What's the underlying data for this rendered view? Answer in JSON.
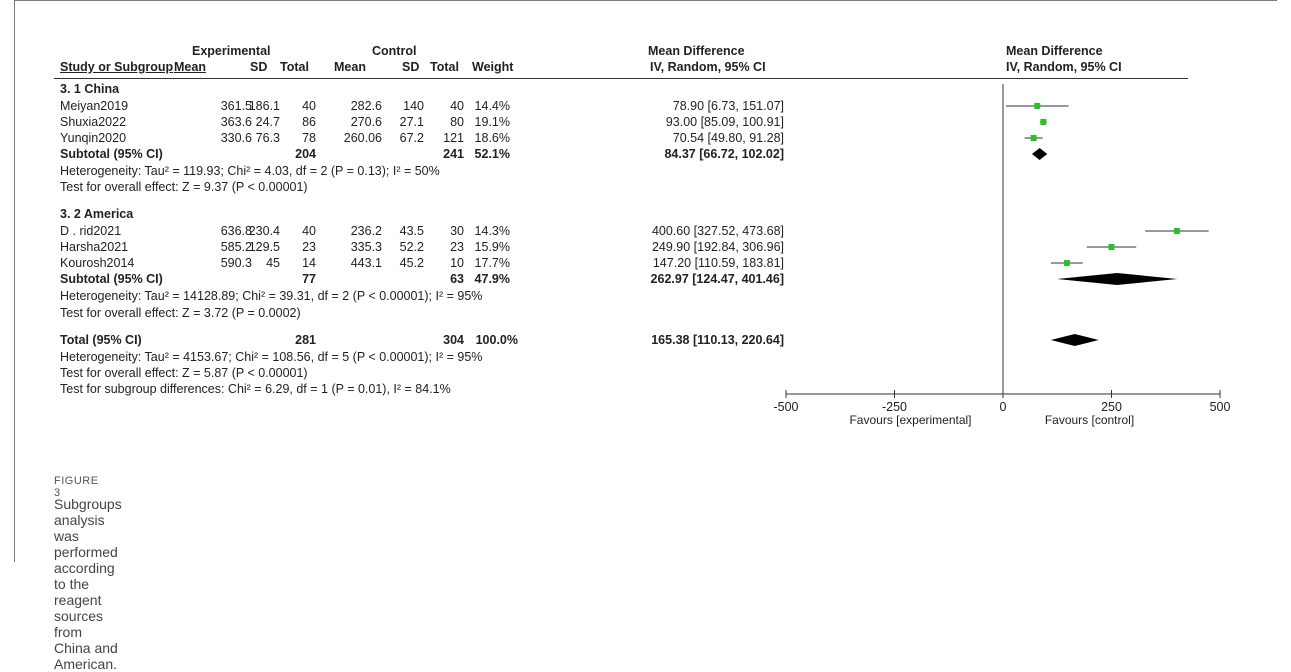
{
  "header": {
    "experimental": "Experimental",
    "control": "Control",
    "mean_difference": "Mean Difference",
    "study_col": "Study or Subgroup",
    "mean": "Mean",
    "sd": "SD",
    "total": "Total",
    "weight": "Weight",
    "ci_label": "IV, Random, 95% CI",
    "plot_title": "Mean Difference",
    "plot_sub": "IV, Random, 95% CI"
  },
  "subgroups": [
    {
      "title": "3.  1 China",
      "studies": [
        {
          "name": "Meiyan2019",
          "e_mean": "361.5",
          "e_sd": "186.1",
          "e_total": "40",
          "c_mean": "282.6",
          "c_sd": "140",
          "c_total": "40",
          "weight": "14.4%",
          "ci": "78.90 [6.73, 151.07]"
        },
        {
          "name": "Shuxia2022",
          "e_mean": "363.6",
          "e_sd": "24.7",
          "e_total": "86",
          "c_mean": "270.6",
          "c_sd": "27.1",
          "c_total": "80",
          "weight": "19.1%",
          "ci": "93.00 [85.09, 100.91]"
        },
        {
          "name": "Yunqin2020",
          "e_mean": "330.6",
          "e_sd": "76.3",
          "e_total": "78",
          "c_mean": "260.06",
          "c_sd": "67.2",
          "c_total": "121",
          "weight": "18.6%",
          "ci": "70.54 [49.80, 91.28]"
        }
      ],
      "subtotal": {
        "label": "Subtotal (95% CI)",
        "e_total": "204",
        "c_total": "241",
        "weight": "52.1%",
        "ci": "84.37 [66.72, 102.02]"
      },
      "heterogeneity": "Heterogeneity: Tau² = 119.93; Chi² = 4.03, df = 2 (P = 0.13); I² = 50%",
      "overall": "Test for overall effect: Z = 9.37 (P < 0.00001)"
    },
    {
      "title": "3.  2 America",
      "studies": [
        {
          "name": "D . rid2021",
          "e_mean": "636.8",
          "e_sd": "230.4",
          "e_total": "40",
          "c_mean": "236.2",
          "c_sd": "43.5",
          "c_total": "30",
          "weight": "14.3%",
          "ci": "400.60 [327.52, 473.68]"
        },
        {
          "name": "Harsha2021",
          "e_mean": "585.2",
          "e_sd": "129.5",
          "e_total": "23",
          "c_mean": "335.3",
          "c_sd": "52.2",
          "c_total": "23",
          "weight": "15.9%",
          "ci": "249.90 [192.84, 306.96]"
        },
        {
          "name": "Kourosh2014",
          "e_mean": "590.3",
          "e_sd": "45",
          "e_total": "14",
          "c_mean": "443.1",
          "c_sd": "45.2",
          "c_total": "10",
          "weight": "17.7%",
          "ci": "147.20 [110.59, 183.81]"
        }
      ],
      "subtotal": {
        "label": "Subtotal (95% CI)",
        "e_total": "77",
        "c_total": "63",
        "weight": "47.9%",
        "ci": "262.97 [124.47, 401.46]"
      },
      "heterogeneity": "Heterogeneity: Tau² = 14128.89; Chi² = 39.31, df = 2 (P < 0.00001); I² = 95%",
      "overall": "Test for overall effect: Z = 3.72 (P = 0.0002)"
    }
  ],
  "total": {
    "label": "Total (95% CI)",
    "e_total": "281",
    "c_total": "304",
    "weight": "100.0%",
    "ci": "165.38 [110.13, 220.64]"
  },
  "total_heterogeneity": "Heterogeneity: Tau² = 4153.67; Chi² = 108.56, df = 5 (P < 0.00001); I² = 95%",
  "total_overall": "Test for overall effect: Z = 5.87 (P < 0.00001)",
  "subgroup_diff": "Test for subgroup differences: Chi² = 6.29, df = 1 (P = 0.01), I² = 84.1%",
  "caption": {
    "label": "FIGURE 3",
    "text": "Subgroups analysis was performed according to the reagent sources from China and American."
  },
  "chart_data": {
    "type": "forest",
    "xlim": [
      -500,
      500
    ],
    "xticks": [
      "-500",
      "-250",
      "0",
      "250",
      "500"
    ],
    "xlabel_left": "Favours [experimental]",
    "xlabel_right": "Favours [control]",
    "point_color": "#2bbf2b",
    "diamond_color": "#000000",
    "studies": [
      {
        "label": "Meiyan2019",
        "estimate": 78.9,
        "lower": 6.73,
        "upper": 151.07
      },
      {
        "label": "Shuxia2022",
        "estimate": 93.0,
        "lower": 85.09,
        "upper": 100.91
      },
      {
        "label": "Yunqin2020",
        "estimate": 70.54,
        "lower": 49.8,
        "upper": 91.28
      },
      {
        "label": "D . rid2021",
        "estimate": 400.6,
        "lower": 327.52,
        "upper": 473.68
      },
      {
        "label": "Harsha2021",
        "estimate": 249.9,
        "lower": 192.84,
        "upper": 306.96
      },
      {
        "label": "Kourosh2014",
        "estimate": 147.2,
        "lower": 110.59,
        "upper": 183.81
      }
    ],
    "diamonds": [
      {
        "label": "Subtotal China",
        "estimate": 84.37,
        "lower": 66.72,
        "upper": 102.02
      },
      {
        "label": "Subtotal America",
        "estimate": 262.97,
        "lower": 124.47,
        "upper": 401.46
      },
      {
        "label": "Total",
        "estimate": 165.38,
        "lower": 110.13,
        "upper": 220.64
      }
    ]
  }
}
